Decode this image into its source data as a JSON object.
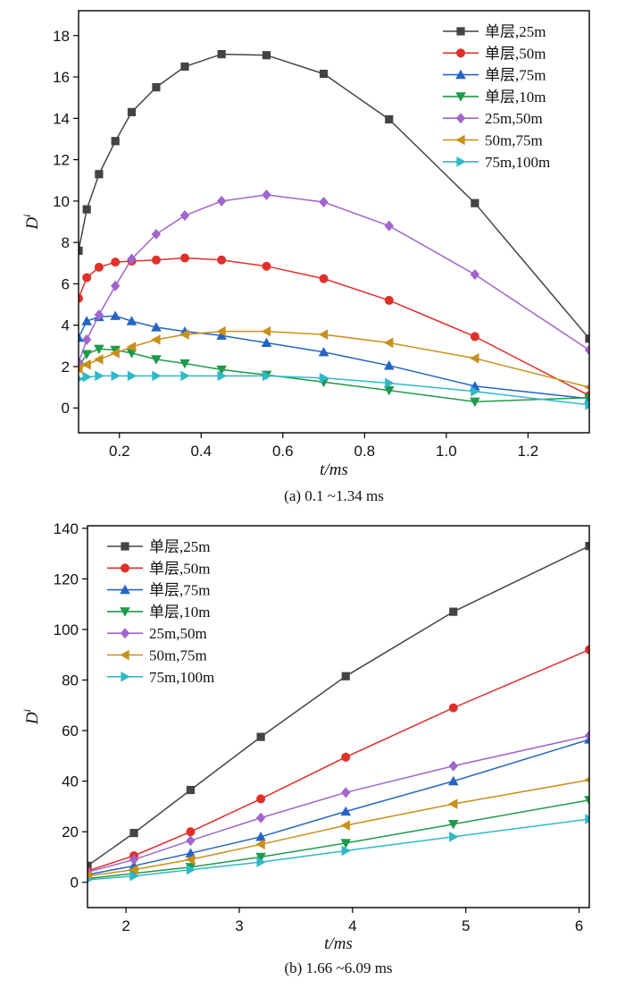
{
  "chart_data": [
    {
      "type": "line",
      "xlabel": "t/ms",
      "ylabel": "D",
      "ylabel_sup": "i",
      "caption": "(a) 0.1 ~1.34 ms",
      "xlim": [
        0.1,
        1.35
      ],
      "ylim": [
        -1.2,
        19.2
      ],
      "xticks": [
        0.2,
        0.4,
        0.6,
        0.8,
        1.0,
        1.2
      ],
      "xtick_labels": [
        "0.2",
        "0.4",
        "0.6",
        "0.8",
        "1.0",
        "1.2"
      ],
      "yticks": [
        0,
        2,
        4,
        6,
        8,
        10,
        12,
        14,
        16,
        18
      ],
      "ytick_labels": [
        "0",
        "2",
        "4",
        "6",
        "8",
        "10",
        "12",
        "14",
        "16",
        "18"
      ],
      "legend_position": "top-right",
      "x": [
        0.1,
        0.12,
        0.15,
        0.19,
        0.23,
        0.29,
        0.36,
        0.45,
        0.56,
        0.7,
        0.86,
        1.07,
        1.35
      ],
      "series": [
        {
          "name": "单层,25m",
          "color": "#444444",
          "marker": "square",
          "values": [
            7.6,
            9.6,
            11.3,
            12.9,
            14.3,
            15.5,
            16.5,
            17.1,
            17.05,
            16.15,
            13.95,
            9.9,
            3.35
          ]
        },
        {
          "name": "单层,50m",
          "color": "#e0302a",
          "marker": "circle",
          "values": [
            5.3,
            6.3,
            6.8,
            7.05,
            7.1,
            7.15,
            7.25,
            7.15,
            6.85,
            6.25,
            5.2,
            3.45,
            0.6
          ]
        },
        {
          "name": "单层,75m",
          "color": "#2465c4",
          "marker": "triangle-up",
          "values": [
            3.4,
            4.2,
            4.4,
            4.45,
            4.2,
            3.9,
            3.7,
            3.5,
            3.15,
            2.7,
            2.05,
            1.05,
            0.45
          ]
        },
        {
          "name": "单层,10m",
          "color": "#1e9a4a",
          "marker": "triangle-down",
          "values": [
            2.0,
            2.6,
            2.85,
            2.8,
            2.65,
            2.35,
            2.15,
            1.85,
            1.6,
            1.25,
            0.85,
            0.3,
            0.5
          ]
        },
        {
          "name": "25m,50m",
          "color": "#a066cc",
          "marker": "diamond",
          "values": [
            2.2,
            3.3,
            4.5,
            5.9,
            7.2,
            8.4,
            9.3,
            10.0,
            10.3,
            9.95,
            8.8,
            6.45,
            2.8
          ]
        },
        {
          "name": "50m,75m",
          "color": "#c8901a",
          "marker": "triangle-left",
          "values": [
            1.9,
            2.1,
            2.35,
            2.65,
            2.95,
            3.3,
            3.55,
            3.7,
            3.7,
            3.55,
            3.15,
            2.4,
            1.0
          ]
        },
        {
          "name": "75m,100m",
          "color": "#30b8c8",
          "marker": "triangle-right",
          "values": [
            1.4,
            1.5,
            1.55,
            1.55,
            1.55,
            1.55,
            1.55,
            1.55,
            1.55,
            1.45,
            1.2,
            0.8,
            0.15
          ]
        }
      ]
    },
    {
      "type": "line",
      "xlabel": "t/ms",
      "ylabel": "D",
      "ylabel_sup": "i",
      "caption": "(b) 1.66 ~6.09 ms",
      "xlim": [
        1.66,
        6.09
      ],
      "ylim": [
        -10,
        141
      ],
      "xticks": [
        2,
        3,
        4,
        5,
        6
      ],
      "xtick_labels": [
        "2",
        "3",
        "4",
        "5",
        "6"
      ],
      "yticks": [
        0,
        20,
        40,
        60,
        80,
        100,
        120,
        140
      ],
      "ytick_labels": [
        "0",
        "20",
        "40",
        "60",
        "80",
        "100",
        "120",
        "140"
      ],
      "legend_position": "top-left",
      "x": [
        1.66,
        2.07,
        2.57,
        3.19,
        3.94,
        4.89,
        6.09
      ],
      "series": [
        {
          "name": "单层,25m",
          "color": "#444444",
          "marker": "square",
          "values": [
            6.5,
            19.5,
            36.5,
            57.5,
            81.5,
            107,
            133
          ]
        },
        {
          "name": "单层,50m",
          "color": "#e0302a",
          "marker": "circle",
          "values": [
            4.5,
            10.5,
            20.0,
            33.0,
            49.5,
            69.0,
            92.0
          ]
        },
        {
          "name": "单层,75m",
          "color": "#2465c4",
          "marker": "triangle-up",
          "values": [
            3.0,
            6.5,
            11.5,
            18.0,
            28.0,
            40.0,
            56.5
          ]
        },
        {
          "name": "单层,10m",
          "color": "#1e9a4a",
          "marker": "triangle-down",
          "values": [
            1.5,
            3.5,
            6.0,
            10.0,
            15.5,
            23.0,
            32.5
          ]
        },
        {
          "name": "25m,50m",
          "color": "#a066cc",
          "marker": "diamond",
          "values": [
            4.0,
            9.0,
            16.5,
            25.5,
            35.5,
            46.0,
            58.0
          ]
        },
        {
          "name": "50m,75m",
          "color": "#c8901a",
          "marker": "triangle-left",
          "values": [
            2.5,
            5.0,
            9.0,
            15.0,
            22.5,
            31.0,
            40.5
          ]
        },
        {
          "name": "75m,100m",
          "color": "#30b8c8",
          "marker": "triangle-right",
          "values": [
            1.0,
            2.5,
            5.0,
            8.0,
            12.5,
            18.0,
            25.0
          ]
        }
      ]
    }
  ]
}
